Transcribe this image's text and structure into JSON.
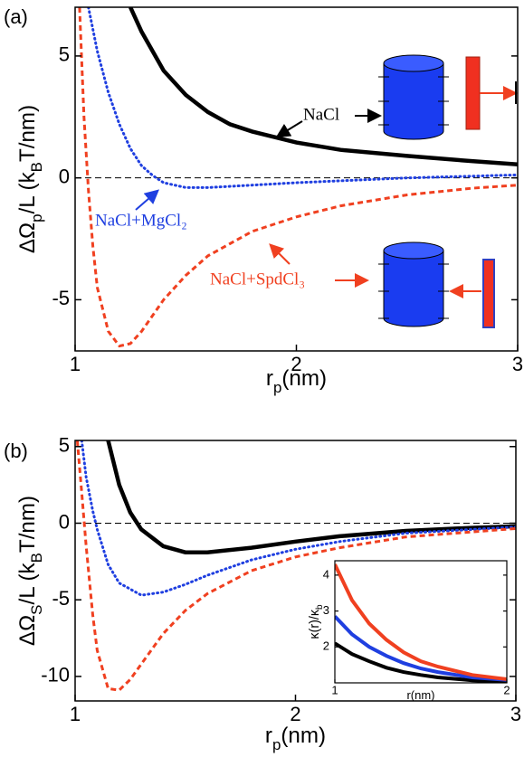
{
  "chart_data": [
    {
      "type": "line",
      "panel_label": "(a)",
      "x_label": [
        "r",
        "p",
        "(nm)"
      ],
      "y_label": [
        "ΔΩ",
        "p",
        "/L (k",
        "B",
        "T/nm)"
      ],
      "xlim": [
        1,
        3
      ],
      "ylim": [
        -7.1,
        7
      ],
      "xticks": [
        1,
        2,
        3
      ],
      "yticks": [
        -5,
        0,
        5
      ],
      "hline": 0,
      "series": [
        {
          "name": "NaCl",
          "color": "#000000",
          "style": "solid",
          "x": [
            1.25,
            1.3,
            1.4,
            1.5,
            1.6,
            1.7,
            1.8,
            2.0,
            2.2,
            2.5,
            2.8,
            3.0
          ],
          "values": [
            7,
            6,
            4.4,
            3.4,
            2.7,
            2.2,
            1.9,
            1.45,
            1.15,
            0.9,
            0.68,
            0.55
          ]
        },
        {
          "name": "NaCl+MgCl₂",
          "color": "#1f3fe0",
          "style": "dotted",
          "x": [
            1.06,
            1.1,
            1.15,
            1.2,
            1.25,
            1.3,
            1.35,
            1.4,
            1.5,
            1.6,
            1.8,
            2.0,
            2.5,
            3.0
          ],
          "values": [
            7,
            5.2,
            3.5,
            2.2,
            1.2,
            0.5,
            0.1,
            -0.2,
            -0.4,
            -0.4,
            -0.3,
            -0.2,
            0.0,
            0.12
          ]
        },
        {
          "name": "NaCl+SpdCl₃",
          "color": "#f04020",
          "style": "dashed",
          "x": [
            1.02,
            1.04,
            1.06,
            1.08,
            1.1,
            1.15,
            1.2,
            1.25,
            1.3,
            1.4,
            1.5,
            1.6,
            1.8,
            2.0,
            2.2,
            2.5,
            2.8,
            3.0
          ],
          "values": [
            7,
            2.5,
            -0.5,
            -2.8,
            -4.5,
            -6.3,
            -6.9,
            -6.8,
            -6.3,
            -5.0,
            -4.0,
            -3.2,
            -2.2,
            -1.6,
            -1.15,
            -0.7,
            -0.42,
            -0.3
          ]
        }
      ]
    },
    {
      "type": "line",
      "panel_label": "(b)",
      "x_label": [
        "r",
        "p",
        "(nm)"
      ],
      "y_label": [
        "ΔΩ",
        "S",
        "/L (k",
        "B",
        "T/nm)"
      ],
      "xlim": [
        1,
        3
      ],
      "ylim": [
        -11.6,
        5.4
      ],
      "xticks": [
        1,
        2,
        3
      ],
      "yticks": [
        -10,
        -5,
        0,
        5
      ],
      "hline": 0,
      "series": [
        {
          "color": "#000000",
          "style": "solid",
          "x": [
            1.15,
            1.2,
            1.25,
            1.3,
            1.4,
            1.5,
            1.6,
            1.8,
            2.0,
            2.2,
            2.5,
            2.8,
            3.0
          ],
          "values": [
            5.4,
            2.5,
            0.7,
            -0.4,
            -1.5,
            -1.9,
            -1.9,
            -1.6,
            -1.2,
            -0.85,
            -0.5,
            -0.3,
            -0.2
          ]
        },
        {
          "color": "#1f3fe0",
          "style": "dotted",
          "x": [
            1.03,
            1.05,
            1.08,
            1.1,
            1.15,
            1.2,
            1.3,
            1.4,
            1.5,
            1.6,
            1.8,
            2.0,
            2.2,
            2.5,
            3.0
          ],
          "values": [
            5.4,
            3,
            0.8,
            -0.4,
            -2.7,
            -3.9,
            -4.7,
            -4.5,
            -4.0,
            -3.4,
            -2.4,
            -1.7,
            -1.2,
            -0.65,
            -0.25
          ]
        },
        {
          "color": "#f04020",
          "style": "dashed",
          "x": [
            1.01,
            1.03,
            1.05,
            1.08,
            1.1,
            1.15,
            1.2,
            1.25,
            1.3,
            1.4,
            1.5,
            1.6,
            1.8,
            2.0,
            2.2,
            2.5,
            3.0
          ],
          "values": [
            5.4,
            2.0,
            -1.5,
            -6,
            -8.3,
            -10.8,
            -10.9,
            -10.2,
            -9.2,
            -7.2,
            -5.7,
            -4.6,
            -3.1,
            -2.2,
            -1.6,
            -0.9,
            -0.35
          ]
        }
      ]
    },
    {
      "type": "line",
      "x_label": [
        "r(nm)"
      ],
      "y_label": [
        "κ(r)/κ",
        "b"
      ],
      "xlim": [
        1,
        2
      ],
      "ylim": [
        1,
        4.4
      ],
      "xticks": [
        1,
        2
      ],
      "yticks": [
        2,
        3,
        4
      ],
      "series": [
        {
          "color": "#000000",
          "style": "solid",
          "x": [
            1,
            1.1,
            1.2,
            1.3,
            1.4,
            1.5,
            1.6,
            1.8,
            2.0
          ],
          "values": [
            2.1,
            1.8,
            1.6,
            1.42,
            1.3,
            1.22,
            1.15,
            1.07,
            1.03
          ]
        },
        {
          "color": "#1f3fe0",
          "style": "solid",
          "x": [
            1,
            1.1,
            1.2,
            1.3,
            1.4,
            1.5,
            1.6,
            1.8,
            2.0
          ],
          "values": [
            2.85,
            2.35,
            2.0,
            1.75,
            1.55,
            1.4,
            1.3,
            1.15,
            1.08
          ]
        },
        {
          "color": "#f04020",
          "style": "solid",
          "x": [
            1,
            1.1,
            1.2,
            1.3,
            1.4,
            1.5,
            1.6,
            1.8,
            2.0
          ],
          "values": [
            4.3,
            3.3,
            2.65,
            2.2,
            1.85,
            1.6,
            1.45,
            1.22,
            1.1
          ]
        }
      ]
    }
  ]
}
